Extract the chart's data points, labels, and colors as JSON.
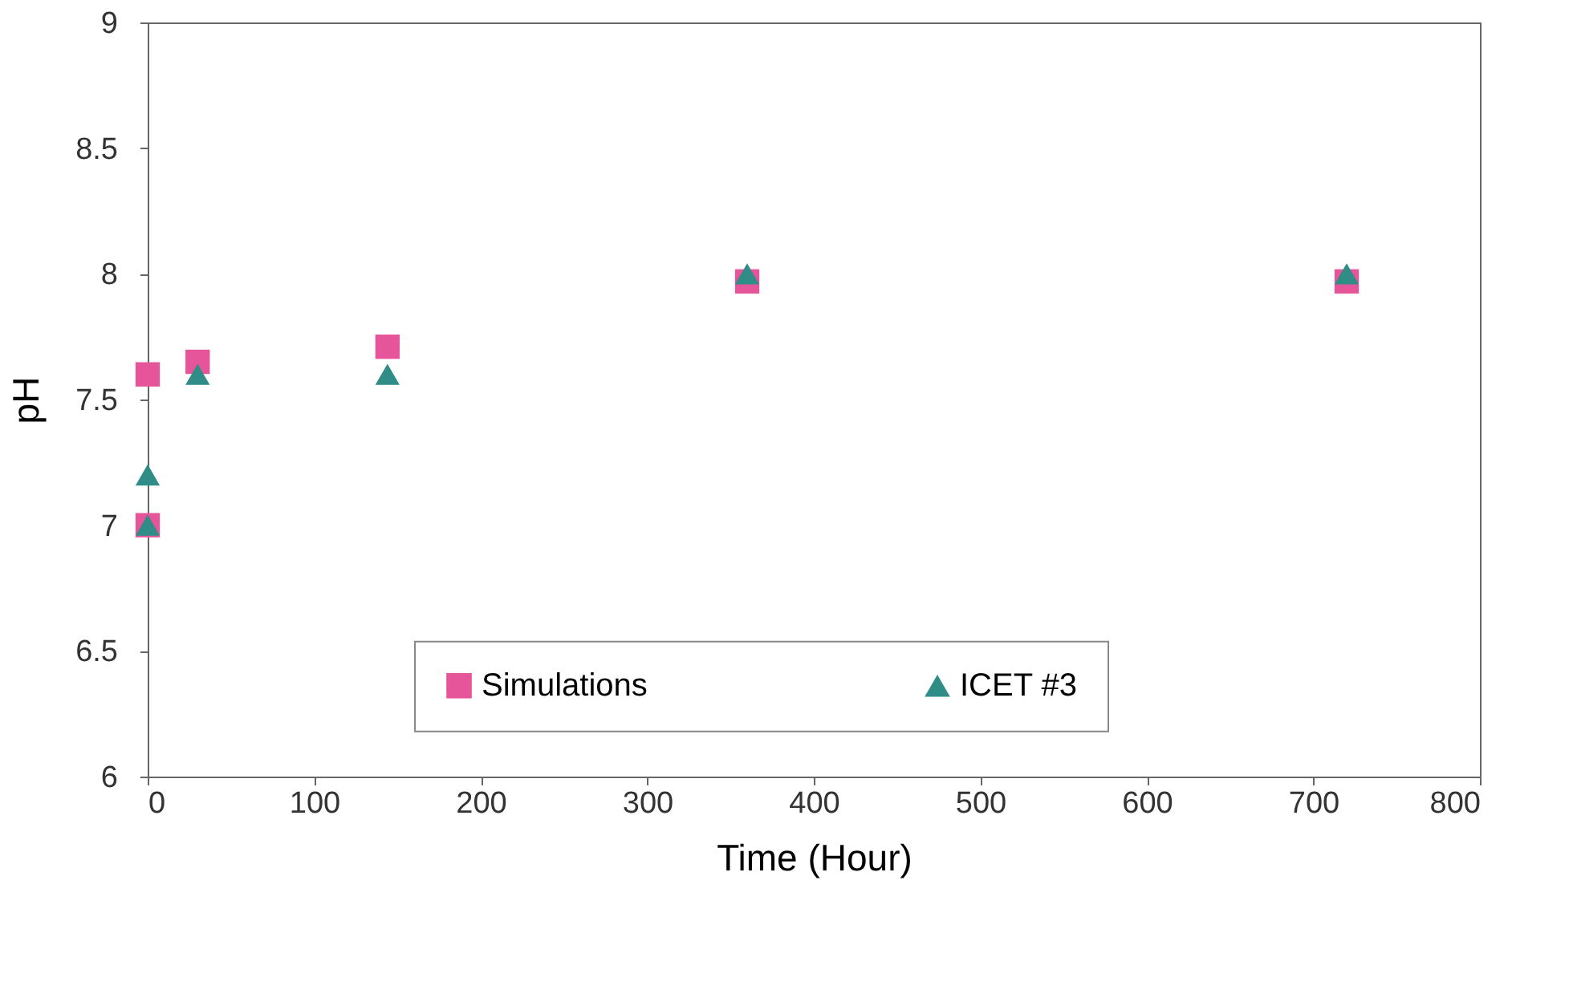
{
  "chart_data": {
    "type": "scatter",
    "xlabel": "Time (Hour)",
    "ylabel": "pH",
    "xlim": [
      0,
      800
    ],
    "xticks": [
      0,
      100,
      200,
      300,
      400,
      500,
      600,
      700,
      800
    ],
    "ylim": [
      6,
      9
    ],
    "yticks": [
      6,
      6.5,
      7,
      7.5,
      8,
      8.5,
      9
    ],
    "grid": false,
    "legend": "bottom",
    "series": [
      {
        "name": "Simulations",
        "color": "#e6549a",
        "marker": "square",
        "x": [
          0,
          0,
          30,
          144,
          360,
          720
        ],
        "values": [
          7.6,
          7.0,
          7.65,
          7.71,
          7.97,
          7.97
        ]
      },
      {
        "name": "ICET #3",
        "color": "#2f8c86",
        "marker": "triangle",
        "x": [
          0,
          0,
          30,
          144,
          360,
          720
        ],
        "values": [
          7.2,
          7.0,
          7.6,
          7.6,
          8.0,
          8.0
        ]
      }
    ]
  }
}
